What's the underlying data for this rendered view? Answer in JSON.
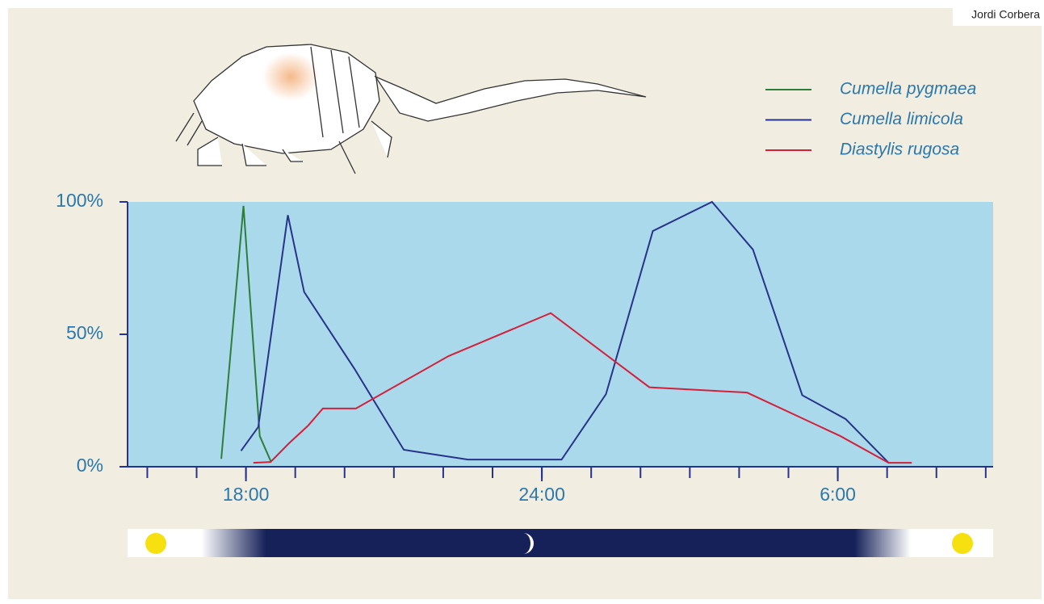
{
  "chart_data": {
    "type": "line",
    "credit": "Jordi Corbera",
    "xlim": [
      15.6,
      33.15
    ],
    "ylim": [
      0,
      100
    ],
    "xticks": [
      {
        "value": 18,
        "label": "18:00"
      },
      {
        "value": 24,
        "label": "24:00"
      },
      {
        "value": 30,
        "label": "6:00"
      }
    ],
    "xminorticks": [
      16,
      17,
      18,
      19,
      20,
      21,
      22,
      23,
      24,
      25,
      26,
      27,
      28,
      29,
      30,
      31,
      32,
      33
    ],
    "yticks": [
      {
        "value": 0,
        "label": "0%"
      },
      {
        "value": 50,
        "label": "50%"
      },
      {
        "value": 100,
        "label": "100%"
      }
    ],
    "background": "#a9d9ea",
    "series": [
      {
        "name": "Cumella pygmaea",
        "color": "#2e7d3a",
        "x": [
          17.5,
          17.95,
          18.28,
          18.51
        ],
        "values": [
          3,
          98.5,
          11.6,
          1.8
        ]
      },
      {
        "name": "Cumella limicola",
        "color": "#27338a",
        "x": [
          17.9,
          18.25,
          18.85,
          19.18,
          20.2,
          21.2,
          22.5,
          24.4,
          25.3,
          26.25,
          27.45,
          28.28,
          29.28,
          30.16,
          31.03
        ],
        "values": [
          6,
          15,
          95,
          66,
          37,
          6.4,
          2.7,
          2.7,
          27.4,
          89,
          100,
          82,
          27,
          18,
          1.5
        ]
      },
      {
        "name": "Diastylis rugosa",
        "color": "#d61f3a",
        "x": [
          18.15,
          18.5,
          18.87,
          19.26,
          19.56,
          20.23,
          22.11,
          24.18,
          26.18,
          28.16,
          30.05,
          31.03,
          31.5
        ],
        "values": [
          1.5,
          1.8,
          8.8,
          15.5,
          22,
          22,
          41.8,
          58,
          30,
          28,
          11.6,
          1.5,
          1.5
        ]
      }
    ]
  }
}
